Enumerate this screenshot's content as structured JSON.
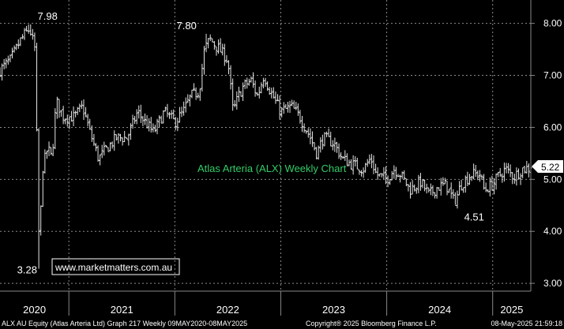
{
  "chart_data": {
    "type": "ohlc",
    "title": "Atlas Arteria (ALX) Weekly Chart",
    "watermark": "www.marketmatters.com.au",
    "footer_left": "ALX AU Equity (Atlas Arteria Ltd) Graph 217  Weekly 09MAY2020-08MAY2025",
    "footer_center": "Copyright® 2025 Bloomberg Finance L.P.",
    "footer_right": "08-May-2025 21:59:18",
    "last_price_label": "5.22",
    "last_price": 5.22,
    "ylim": [
      2.85,
      8.45
    ],
    "y_ticks": [
      "3.00",
      "4.00",
      "5.00",
      "6.00",
      "7.00",
      "8.00"
    ],
    "y_tick_values": [
      3,
      4,
      5,
      6,
      7,
      8
    ],
    "x_labels": [
      "2020",
      "2021",
      "2022",
      "2023",
      "2024",
      "2025"
    ],
    "x_range": [
      2020.35,
      2025.36
    ],
    "x_year_starts": [
      2020.0,
      2021.0,
      2022.0,
      2023.0,
      2024.0,
      2025.0
    ],
    "annotations": [
      {
        "text": "7.98",
        "x": 2020.63,
        "y": 7.98
      },
      {
        "text": "3.28",
        "x": 2020.72,
        "y": 3.28
      },
      {
        "text": "7.80",
        "x": 2022.3,
        "y": 7.8
      },
      {
        "text": "4.51",
        "x": 2024.85,
        "y": 4.51
      }
    ],
    "anchors": [
      [
        2020.35,
        7.1
      ],
      [
        2020.45,
        7.3
      ],
      [
        2020.55,
        7.7
      ],
      [
        2020.63,
        7.9
      ],
      [
        2020.68,
        7.5
      ],
      [
        2020.72,
        3.6
      ],
      [
        2020.75,
        5.2
      ],
      [
        2020.8,
        5.6
      ],
      [
        2020.84,
        5.4
      ],
      [
        2020.88,
        6.5
      ],
      [
        2020.95,
        6.2
      ],
      [
        2021.05,
        6.2
      ],
      [
        2021.13,
        6.4
      ],
      [
        2021.2,
        5.9
      ],
      [
        2021.28,
        5.4
      ],
      [
        2021.36,
        5.6
      ],
      [
        2021.45,
        5.8
      ],
      [
        2021.55,
        5.8
      ],
      [
        2021.65,
        6.3
      ],
      [
        2021.72,
        6.1
      ],
      [
        2021.8,
        5.9
      ],
      [
        2021.9,
        6.3
      ],
      [
        2022.0,
        6.1
      ],
      [
        2022.08,
        6.3
      ],
      [
        2022.15,
        6.6
      ],
      [
        2022.23,
        6.7
      ],
      [
        2022.28,
        7.5
      ],
      [
        2022.33,
        7.7
      ],
      [
        2022.42,
        7.5
      ],
      [
        2022.5,
        7.3
      ],
      [
        2022.55,
        6.3
      ],
      [
        2022.6,
        6.6
      ],
      [
        2022.65,
        6.8
      ],
      [
        2022.72,
        6.9
      ],
      [
        2022.78,
        6.6
      ],
      [
        2022.84,
        7.0
      ],
      [
        2022.9,
        6.7
      ],
      [
        2023.0,
        6.3
      ],
      [
        2023.1,
        6.4
      ],
      [
        2023.18,
        6.2
      ],
      [
        2023.28,
        5.8
      ],
      [
        2023.34,
        5.5
      ],
      [
        2023.4,
        5.8
      ],
      [
        2023.5,
        5.7
      ],
      [
        2023.58,
        5.4
      ],
      [
        2023.66,
        5.3
      ],
      [
        2023.78,
        5.2
      ],
      [
        2023.85,
        5.4
      ],
      [
        2023.9,
        5.1
      ],
      [
        2024.0,
        5.0
      ],
      [
        2024.07,
        5.2
      ],
      [
        2024.13,
        5.1
      ],
      [
        2024.22,
        4.8
      ],
      [
        2024.32,
        4.95
      ],
      [
        2024.4,
        4.7
      ],
      [
        2024.48,
        4.85
      ],
      [
        2024.56,
        4.9
      ],
      [
        2024.64,
        4.55
      ],
      [
        2024.7,
        4.9
      ],
      [
        2024.8,
        5.1
      ],
      [
        2024.88,
        5.1
      ],
      [
        2024.92,
        4.8
      ],
      [
        2025.0,
        4.9
      ],
      [
        2025.05,
        5.05
      ],
      [
        2025.12,
        5.2
      ],
      [
        2025.2,
        5.05
      ],
      [
        2025.28,
        5.2
      ],
      [
        2025.36,
        5.22
      ]
    ]
  }
}
